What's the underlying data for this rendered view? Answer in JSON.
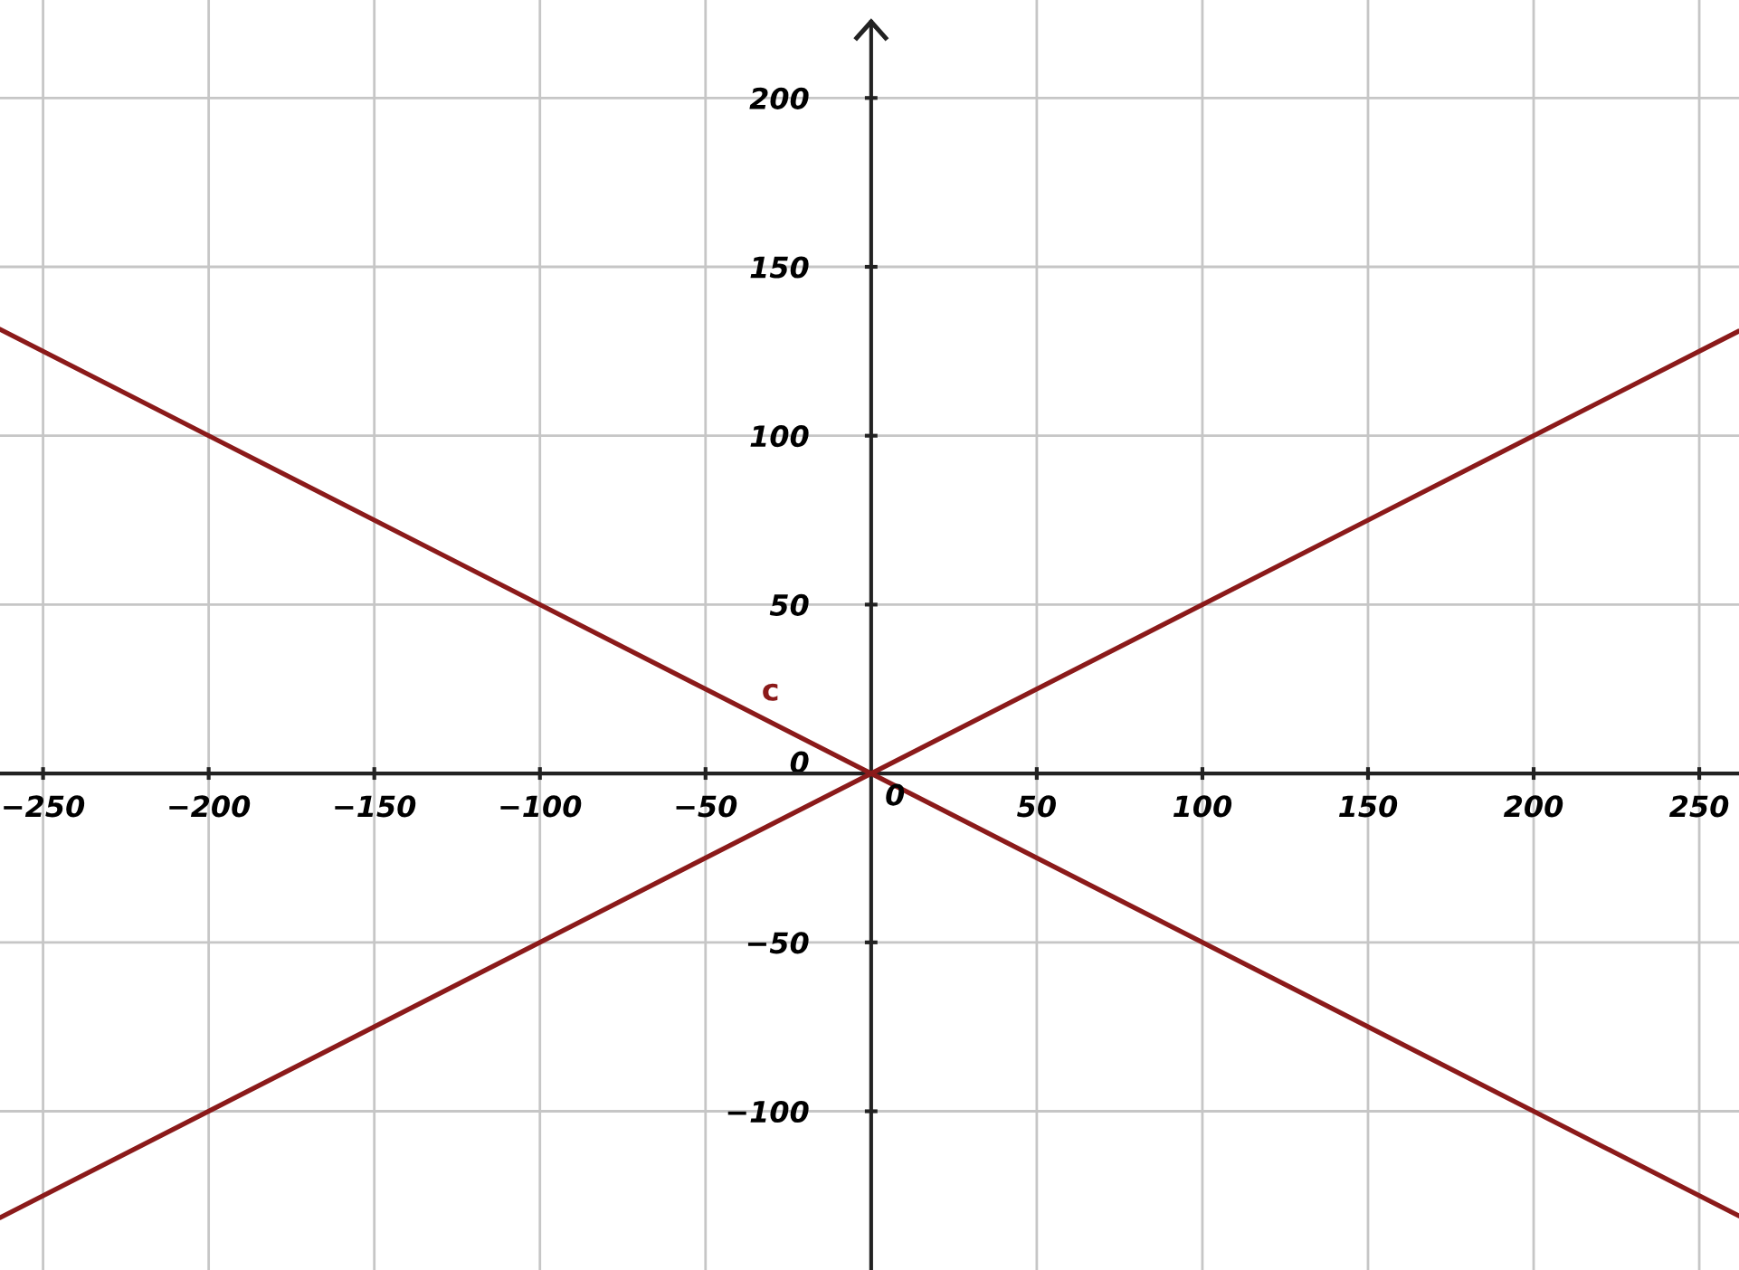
{
  "chart_data": {
    "type": "line",
    "series": [
      {
        "name": "c",
        "color": "#8b1a1a",
        "x": [
          -263,
          0,
          262
        ],
        "values": [
          131.5,
          0,
          -131
        ]
      },
      {
        "color": "#8b1a1a",
        "x": [
          -263,
          0,
          262
        ],
        "values": [
          -131.5,
          0,
          131
        ]
      }
    ],
    "xlim": [
      -263,
      262
    ],
    "ylim": [
      -147,
      229
    ],
    "xticks": [
      {
        "value": -250,
        "label": "−250"
      },
      {
        "value": -200,
        "label": "−200"
      },
      {
        "value": -150,
        "label": "−150"
      },
      {
        "value": -100,
        "label": "−100"
      },
      {
        "value": -50,
        "label": "−50"
      },
      50,
      100,
      150,
      200,
      250
    ],
    "yticks": [
      {
        "value": -100,
        "label": "−100"
      },
      {
        "value": -50,
        "label": "−50"
      },
      0,
      50,
      100,
      150,
      200
    ],
    "grid": true,
    "marker": "none",
    "line_style": "solid",
    "annotations": [
      {
        "text": "0",
        "x": 0,
        "y": 0
      }
    ]
  }
}
